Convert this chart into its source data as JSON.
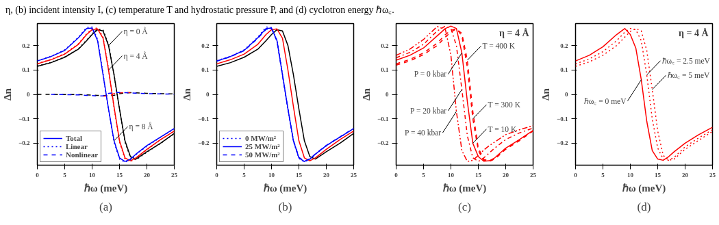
{
  "chart_data": [
    {
      "type": "line",
      "xlabel": "ℏω (meV)",
      "ylabel": "Δn",
      "xlim": [
        0,
        25
      ],
      "ylim": [
        -0.29,
        0.29
      ],
      "xticks": [
        0,
        5,
        10,
        15,
        20,
        25
      ],
      "yticks": [
        -0.2,
        -0.1,
        0,
        0.1,
        0.2
      ],
      "grid": false,
      "legend": "bottom left",
      "x": [
        0,
        2.5,
        5,
        7.5,
        9,
        10,
        11,
        12,
        13,
        14,
        15,
        16,
        17,
        18,
        20,
        22.5,
        25
      ],
      "annotations": [
        "η, (b) incident intensity I, (c) temperature T and hydrostatic pressure P, and (d) cyclotron energy ℏω꜀.",
        "(a)",
        {
          "text": "η = 0 Å",
          "x": 13,
          "y": 0.2
        },
        {
          "text": "η = 4 Å",
          "x": 13,
          "y": 0.1
        },
        {
          "text": "η = 8 Å",
          "x": 14,
          "y": -0.19
        }
      ],
      "series": [
        {
          "color": "#000000",
          "line_style": "solid",
          "values": [
            0.115,
            0.13,
            0.152,
            0.185,
            0.22,
            0.245,
            0.265,
            0.26,
            0.2,
            0.08,
            -0.06,
            -0.19,
            -0.255,
            -0.265,
            -0.235,
            -0.2,
            -0.16
          ]
        },
        {
          "color": "#000000",
          "line_style": "dotted",
          "values": [
            0.116,
            0.131,
            0.153,
            0.187,
            0.222,
            0.248,
            0.268,
            0.264,
            0.205,
            0.084,
            -0.063,
            -0.195,
            -0.26,
            -0.268,
            -0.237,
            -0.201,
            -0.161
          ]
        },
        {
          "color": "#000000",
          "line_style": "dashed",
          "values": [
            0,
            0,
            -0.001,
            -0.001,
            -0.002,
            -0.003,
            -0.004,
            -0.005,
            -0.006,
            -0.004,
            0.003,
            0.006,
            0.007,
            0.006,
            0.004,
            0.003,
            0.002
          ]
        },
        {
          "color": "#ff0000",
          "line_style": "solid",
          "values": [
            0.125,
            0.142,
            0.165,
            0.205,
            0.245,
            0.265,
            0.268,
            0.23,
            0.1,
            -0.05,
            -0.19,
            -0.26,
            -0.272,
            -0.26,
            -0.225,
            -0.185,
            -0.15
          ]
        },
        {
          "color": "#ff0000",
          "line_style": "dotted",
          "values": [
            0.126,
            0.143,
            0.167,
            0.207,
            0.248,
            0.268,
            0.272,
            0.235,
            0.105,
            -0.053,
            -0.195,
            -0.265,
            -0.275,
            -0.262,
            -0.227,
            -0.186,
            -0.151
          ]
        },
        {
          "color": "#ff0000",
          "line_style": "dashed",
          "values": [
            null,
            null,
            null,
            null,
            null,
            null,
            null,
            -0.007,
            -0.006,
            0.003,
            0.006,
            0.008,
            0.007,
            null,
            null,
            null,
            null
          ]
        },
        {
          "color": "#0000ff",
          "line_style": "solid",
          "name": "Total",
          "values": [
            0.137,
            0.155,
            0.18,
            0.232,
            0.27,
            0.272,
            0.22,
            0.08,
            -0.06,
            -0.19,
            -0.26,
            -0.275,
            -0.265,
            -0.245,
            -0.21,
            -0.175,
            -0.14
          ]
        },
        {
          "color": "#0000ff",
          "line_style": "dotted",
          "name": "Linear",
          "values": [
            0.138,
            0.156,
            0.182,
            0.234,
            0.274,
            0.276,
            0.226,
            0.085,
            -0.062,
            -0.195,
            -0.265,
            -0.278,
            -0.268,
            -0.247,
            -0.212,
            -0.176,
            -0.141
          ]
        },
        {
          "color": "#0000ff",
          "line_style": "dashed",
          "name": "Nonlinear",
          "values": [
            null,
            0,
            -0.001,
            -0.002,
            -0.004,
            -0.005,
            -0.007,
            -0.006,
            0.004,
            0.007,
            0.008,
            0.007,
            0.006,
            0.005,
            0.003,
            0.002,
            0.001
          ]
        }
      ]
    },
    {
      "type": "line",
      "xlabel": "ℏω (meV)",
      "ylabel": "Δn",
      "xlim": [
        0,
        25
      ],
      "ylim": [
        -0.29,
        0.29
      ],
      "xticks": [
        0,
        5,
        10,
        15,
        20,
        25
      ],
      "yticks": [
        -0.2,
        -0.1,
        0,
        0.1,
        0.2
      ],
      "grid": false,
      "legend": "bottom left",
      "x": [
        0,
        2.5,
        5,
        7.5,
        9,
        10,
        11,
        12,
        13,
        14,
        15,
        16,
        17,
        18,
        20,
        22.5,
        25
      ],
      "annotations": [
        "(b)"
      ],
      "series": [
        {
          "color": "#000000",
          "line_style": "solid",
          "values": [
            0.115,
            0.13,
            0.152,
            0.185,
            0.22,
            0.245,
            0.265,
            0.26,
            0.2,
            0.08,
            -0.06,
            -0.19,
            -0.255,
            -0.265,
            -0.235,
            -0.2,
            -0.16
          ]
        },
        {
          "color": "#ff0000",
          "line_style": "solid",
          "values": [
            0.125,
            0.142,
            0.165,
            0.205,
            0.245,
            0.265,
            0.268,
            0.23,
            0.1,
            -0.05,
            -0.19,
            -0.26,
            -0.272,
            -0.26,
            -0.225,
            -0.185,
            -0.15
          ]
        },
        {
          "color": "#0000ff",
          "line_style": "dotted",
          "name": "0 MW/m²",
          "values": [
            0.138,
            0.156,
            0.182,
            0.234,
            0.276,
            0.274,
            0.222,
            0.082,
            -0.06,
            -0.192,
            -0.262,
            -0.277,
            -0.266,
            -0.246,
            -0.211,
            -0.176,
            -0.141
          ]
        },
        {
          "color": "#0000ff",
          "line_style": "solid",
          "name": "25 MW/m²",
          "values": [
            0.137,
            0.155,
            0.18,
            0.232,
            0.27,
            0.272,
            0.22,
            0.08,
            -0.06,
            -0.19,
            -0.26,
            -0.275,
            -0.265,
            -0.245,
            -0.21,
            -0.175,
            -0.14
          ]
        },
        {
          "color": "#0000ff",
          "line_style": "dashed",
          "name": "50 MW/m²",
          "values": [
            0.136,
            0.154,
            0.179,
            0.23,
            0.266,
            0.27,
            0.218,
            0.078,
            -0.06,
            -0.188,
            -0.258,
            -0.273,
            -0.264,
            -0.244,
            -0.209,
            -0.174,
            -0.139
          ]
        }
      ]
    },
    {
      "type": "line",
      "xlabel": "ℏω (meV)",
      "ylabel": "Δn",
      "xlim": [
        0,
        25
      ],
      "ylim": [
        -0.29,
        0.29
      ],
      "xticks": [
        0,
        5,
        10,
        15,
        20,
        25
      ],
      "yticks": [
        -0.2,
        -0.1,
        0,
        0.1,
        0.2
      ],
      "grid": false,
      "x": [
        0,
        2.5,
        5,
        7.5,
        9,
        10,
        11,
        12,
        13,
        14,
        15,
        16,
        17,
        18,
        20,
        22.5,
        25
      ],
      "title": "η = 4 Å",
      "annotations": [
        "(c)",
        {
          "text": "P = 0 kbar",
          "x": 12,
          "y": 0.17
        },
        {
          "text": "P = 20 kbar",
          "x": 12,
          "y": 0.02
        },
        {
          "text": "P = 40 kbar",
          "x": 11,
          "y": -0.07
        },
        {
          "text": "T = 400 K",
          "x": 13,
          "y": 0.14
        },
        {
          "text": "T = 300 K",
          "x": 14,
          "y": -0.1
        },
        {
          "text": "T = 10 K",
          "x": 14,
          "y": -0.2
        }
      ],
      "series": [
        {
          "color": "#ff0000",
          "line_style": "solid",
          "values": [
            0.14,
            0.16,
            0.19,
            0.24,
            0.27,
            0.28,
            0.27,
            0.17,
            -0.03,
            -0.2,
            -0.255,
            -0.274,
            -0.272,
            -0.26,
            -0.22,
            -0.185,
            -0.148
          ]
        },
        {
          "color": "#ff0000",
          "line_style": "dashed",
          "values": [
            0.125,
            0.143,
            0.17,
            0.21,
            0.245,
            0.262,
            0.27,
            0.24,
            0.11,
            -0.1,
            -0.23,
            -0.27,
            -0.274,
            -0.263,
            -0.222,
            -0.187,
            -0.149
          ]
        },
        {
          "color": "#ff0000",
          "line_style": "dashed",
          "values": [
            0.12,
            0.137,
            0.163,
            0.2,
            0.235,
            0.255,
            0.268,
            0.25,
            0.14,
            -0.07,
            -0.22,
            -0.265,
            -0.275,
            -0.265,
            -0.225,
            -0.19,
            -0.15
          ]
        },
        {
          "color": "#ff0000",
          "line_style": "dashdot",
          "values": [
            0.15,
            0.172,
            0.205,
            0.26,
            0.28,
            0.27,
            0.2,
            0.02,
            -0.17,
            -0.26,
            -0.275,
            -0.26,
            -0.24,
            -0.22,
            -0.185,
            -0.158,
            -0.138
          ]
        },
        {
          "color": "#ff0000",
          "line_style": "dashdotdot",
          "values": [
            0.16,
            0.185,
            0.225,
            0.278,
            0.265,
            0.16,
            -0.07,
            -0.23,
            -0.275,
            -0.27,
            -0.25,
            -0.228,
            -0.21,
            -0.195,
            -0.165,
            -0.145,
            -0.128
          ]
        }
      ]
    },
    {
      "type": "line",
      "xlabel": "ℏω (meV)",
      "ylabel": "Δn",
      "xlim": [
        0,
        25
      ],
      "ylim": [
        -0.29,
        0.29
      ],
      "xticks": [
        0,
        5,
        10,
        15,
        20,
        25
      ],
      "yticks": [
        -0.2,
        -0.1,
        0,
        0.1,
        0.2
      ],
      "grid": false,
      "x": [
        0,
        2.5,
        5,
        7.5,
        9,
        10,
        11,
        12,
        13,
        14,
        15,
        16,
        17,
        18,
        20,
        22.5,
        25
      ],
      "title": "η = 4 Å",
      "annotations": [
        "(d)",
        {
          "text": "ℏω꜀ = 0 meV",
          "x": 12,
          "y": 0.06
        },
        {
          "text": "ℏω꜀ = 2.5 meV",
          "x": 13,
          "y": 0.08
        },
        {
          "text": "ℏω꜀ = 5 meV",
          "x": 14,
          "y": 0.02
        }
      ],
      "series": [
        {
          "color": "#ff0000",
          "line_style": "solid",
          "values": [
            0.137,
            0.16,
            0.195,
            0.245,
            0.27,
            0.245,
            0.19,
            0.06,
            -0.11,
            -0.23,
            -0.265,
            -0.27,
            -0.255,
            -0.235,
            -0.2,
            -0.165,
            -0.135
          ]
        },
        {
          "color": "#ff0000",
          "line_style": "dotted",
          "values": [
            0.125,
            0.145,
            0.175,
            0.22,
            0.255,
            0.27,
            0.265,
            0.22,
            0.08,
            -0.1,
            -0.22,
            -0.265,
            -0.27,
            -0.258,
            -0.215,
            -0.178,
            -0.145
          ]
        },
        {
          "color": "#ff0000",
          "line_style": "dotted",
          "values": [
            0.115,
            0.133,
            0.16,
            0.2,
            0.235,
            0.258,
            0.27,
            0.26,
            0.18,
            0.02,
            -0.15,
            -0.25,
            -0.27,
            -0.265,
            -0.225,
            -0.188,
            -0.152
          ]
        }
      ]
    }
  ]
}
